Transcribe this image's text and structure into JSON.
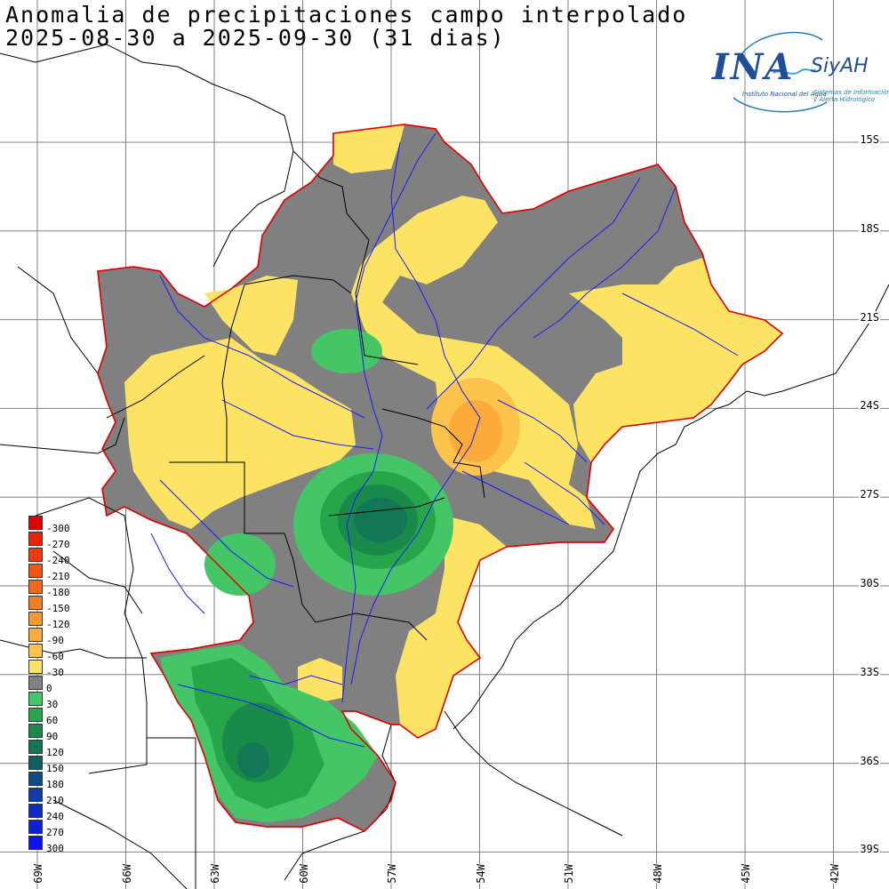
{
  "header": {
    "title_line1": "Anomalia de precipitaciones campo interpolado",
    "title_line2": "2025-08-30 a 2025-09-30 (31 dias)"
  },
  "logo": {
    "ina": "INA",
    "siyah": "SiyAH",
    "subtitle1": "Instituto Nacional del Agua",
    "subtitle2": "Sistemas de Información",
    "subtitle3": "y Alerta Hidrológico"
  },
  "latitude_labels": [
    "15S",
    "18S",
    "21S",
    "24S",
    "27S",
    "30S",
    "33S",
    "36S",
    "39S"
  ],
  "longitude_labels": [
    "69W",
    "66W",
    "63W",
    "60W",
    "57W",
    "54W",
    "51W",
    "48W",
    "45W",
    "42W"
  ],
  "legend": {
    "items": [
      {
        "label": "-300",
        "color": "#e00000"
      },
      {
        "label": "-270",
        "color": "#ea2200"
      },
      {
        "label": "-240",
        "color": "#f03c0c"
      },
      {
        "label": "-210",
        "color": "#f45314"
      },
      {
        "label": "-180",
        "color": "#f4681c"
      },
      {
        "label": "-150",
        "color": "#f57f22"
      },
      {
        "label": "-120",
        "color": "#f8962e"
      },
      {
        "label": "-90",
        "color": "#fbab3a"
      },
      {
        "label": "-60",
        "color": "#fcc44c"
      },
      {
        "label": "-30",
        "color": "#fde363"
      },
      {
        "label": "0",
        "color": "#808080"
      },
      {
        "label": "30",
        "color": "#44c566"
      },
      {
        "label": "60",
        "color": "#26a54a"
      },
      {
        "label": "90",
        "color": "#1a8a4a"
      },
      {
        "label": "120",
        "color": "#137654"
      },
      {
        "label": "150",
        "color": "#0f5f62"
      },
      {
        "label": "180",
        "color": "#0f4d8a"
      },
      {
        "label": "210",
        "color": "#0e3ca8"
      },
      {
        "label": "240",
        "color": "#0d2dc2"
      },
      {
        "label": "270",
        "color": "#0c20d8"
      },
      {
        "label": "300",
        "color": "#0a14ee"
      }
    ]
  },
  "colors": {
    "grid": "#808080",
    "basin_outline": "#e00000",
    "rivers": "#1a1aff",
    "borders": "#000000",
    "coast": "#000000"
  }
}
